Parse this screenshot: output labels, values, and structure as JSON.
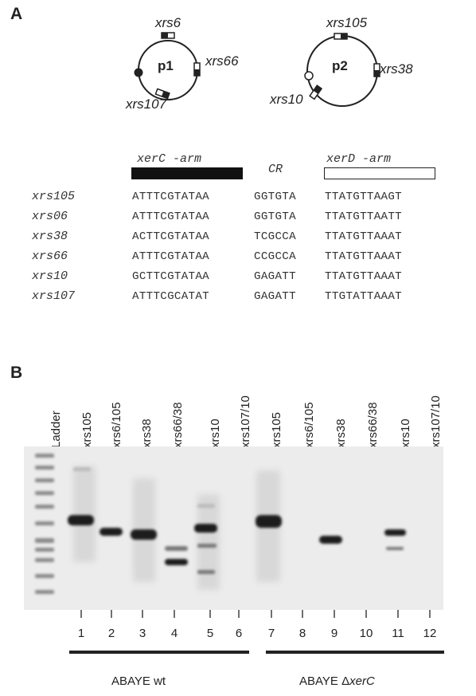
{
  "panel_a": {
    "letter": "A",
    "plasmids": [
      {
        "name": "p1",
        "sites": [
          "xrs6",
          "xrs66",
          "xrs107"
        ]
      },
      {
        "name": "p2",
        "sites": [
          "xrs105",
          "xrs38",
          "xrs10"
        ]
      }
    ],
    "arms": {
      "left": "xerC -arm",
      "center": "CR",
      "right": "xerD -arm"
    },
    "sequences": [
      {
        "name": "xrs105",
        "c": "ATTTCGTATAA",
        "cr": "GGTGTA",
        "d": "TTATGTTAAGT"
      },
      {
        "name": "xrs06",
        "c": "ATTTCGTATAA",
        "cr": "GGTGTA",
        "d": "TTATGTTAATT"
      },
      {
        "name": "xrs38",
        "c": "ACTTCGTATAA",
        "cr": "TCGCCA",
        "d": "TTATGTTAAAT"
      },
      {
        "name": "xrs66",
        "c": "ATTTCGTATAA",
        "cr": "CCGCCA",
        "d": "TTATGTTAAAT"
      },
      {
        "name": "xrs10",
        "c": "GCTTCGTATAA",
        "cr": "GAGATT",
        "d": "TTATGTTAAAT"
      },
      {
        "name": "xrs107",
        "c": "ATTTCGCATAT",
        "cr": "GAGATT",
        "d": "TTGTATTAAAT"
      }
    ]
  },
  "panel_b": {
    "letter": "B",
    "ladder_label": "Ladder",
    "lane_labels": [
      "xrs105",
      "xrs6/105",
      "xrs38",
      "xrs66/38",
      "xrs10",
      "xrs107/10",
      "xrs105",
      "xrs6/105",
      "xrs38",
      "xrs66/38",
      "xrs10",
      "xrs107/10"
    ],
    "lane_numbers": [
      "1",
      "2",
      "3",
      "4",
      "5",
      "6",
      "7",
      "8",
      "9",
      "10",
      "11",
      "12"
    ],
    "groups": [
      {
        "prefix": "ABAYE wt",
        "symbol": "",
        "suffix": ""
      },
      {
        "prefix": "ABAYE ",
        "symbol": "Δ",
        "suffix": "xerC"
      }
    ]
  }
}
